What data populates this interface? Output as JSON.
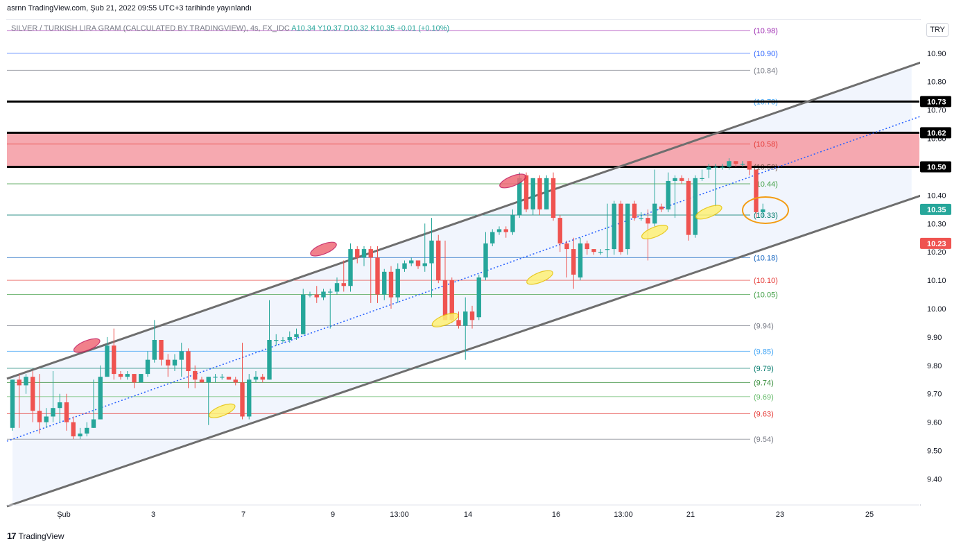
{
  "header": {
    "publisher_text": "asrnn TradingView.com, Şub 21, 2022 09:55 UTC+3 tarihinde yayınlandı"
  },
  "symbol": {
    "name": "SILVER / TURKISH LIRA GRAM (CALCULATED BY TRADINGVIEW), 4s, FX_IDC",
    "ohlc_text": "A10.34  Y10.37  D10.32  K10.35  +0.01 (+0.10%)"
  },
  "currency_button": "TRY",
  "footer": {
    "logo": "17",
    "brand": "TradingView"
  },
  "colors": {
    "up": "#26a69a",
    "down": "#ef5350",
    "channel_line": "#6e6e6e",
    "channel_fill": "#eef2fc",
    "resistance_zone": "#f5a0a7",
    "midline": "#2962ff"
  },
  "chart_data": {
    "type": "candlestick",
    "ylim": [
      9.31,
      11.0
    ],
    "y_ticks": [
      "10.90",
      "10.80",
      "10.70",
      "10.60",
      "10.50",
      "10.40",
      "10.30",
      "10.20",
      "10.10",
      "10.00",
      "9.90",
      "9.80",
      "9.70",
      "9.60",
      "9.50",
      "9.40"
    ],
    "x_ticks": [
      "Şub",
      "3",
      "7",
      "9",
      "13:00",
      "14",
      "16",
      "13:00",
      "21",
      "23",
      "25"
    ],
    "levels": [
      {
        "value": 10.98,
        "label": "(10.98)",
        "color": "#9c27b0"
      },
      {
        "value": 10.9,
        "label": "(10.90)",
        "color": "#2962ff"
      },
      {
        "value": 10.84,
        "label": "(10.84)",
        "color": "#787b86"
      },
      {
        "value": 10.73,
        "label": "(10.73)",
        "color": "#42a5f5"
      },
      {
        "value": 10.58,
        "label": "(10.58)",
        "color": "#e53935"
      },
      {
        "value": 10.5,
        "label": "(10.50)",
        "color": "#795548"
      },
      {
        "value": 10.44,
        "label": "(10.44)",
        "color": "#43a047"
      },
      {
        "value": 10.33,
        "label": "(10.33)",
        "color": "#00796b"
      },
      {
        "value": 10.18,
        "label": "(10.18)",
        "color": "#1565c0"
      },
      {
        "value": 10.1,
        "label": "(10.10)",
        "color": "#e53935"
      },
      {
        "value": 10.05,
        "label": "(10.05)",
        "color": "#43a047"
      },
      {
        "value": 9.94,
        "label": "(9.94)",
        "color": "#787b86"
      },
      {
        "value": 9.85,
        "label": "(9.85)",
        "color": "#42a5f5"
      },
      {
        "value": 9.79,
        "label": "(9.79)",
        "color": "#00796b"
      },
      {
        "value": 9.74,
        "label": "(9.74)",
        "color": "#388e3c"
      },
      {
        "value": 9.69,
        "label": "(9.69)",
        "color": "#66bb6a"
      },
      {
        "value": 9.63,
        "label": "(9.63)",
        "color": "#e53935"
      },
      {
        "value": 9.54,
        "label": "(9.54)",
        "color": "#787b86"
      }
    ],
    "price_badges": [
      {
        "value": 10.73,
        "label": "10.73",
        "bg": "#000000",
        "fg": "#ffffff"
      },
      {
        "value": 10.62,
        "label": "10.62",
        "bg": "#000000",
        "fg": "#ffffff"
      },
      {
        "value": 10.5,
        "label": "10.50",
        "bg": "#000000",
        "fg": "#ffffff"
      },
      {
        "value": 10.35,
        "label": "10.35",
        "bg": "#26a69a",
        "fg": "#ffffff"
      },
      {
        "value": 10.23,
        "label": "10.23",
        "bg": "#ef5350",
        "fg": "#ffffff"
      }
    ],
    "resistance_zone": [
      10.5,
      10.62
    ],
    "black_lines": [
      10.73,
      10.62,
      10.5
    ],
    "candles": [
      [
        9.58,
        9.75,
        9.57,
        9.75
      ],
      [
        9.75,
        9.73,
        9.58,
        9.77
      ],
      [
        9.73,
        9.76,
        9.7,
        9.77
      ],
      [
        9.76,
        9.64,
        9.6,
        9.78
      ],
      [
        9.64,
        9.6,
        9.56,
        9.77
      ],
      [
        9.6,
        9.62,
        9.58,
        9.65
      ],
      [
        9.62,
        9.65,
        9.6,
        9.78
      ],
      [
        9.65,
        9.67,
        9.6,
        9.7
      ],
      [
        9.67,
        9.6,
        9.57,
        9.7
      ],
      [
        9.6,
        9.55,
        9.54,
        9.62
      ],
      [
        9.55,
        9.56,
        9.54,
        9.58
      ],
      [
        9.56,
        9.58,
        9.55,
        9.6
      ],
      [
        9.58,
        9.61,
        9.58,
        9.75
      ],
      [
        9.61,
        9.76,
        9.61,
        9.8
      ],
      [
        9.76,
        9.87,
        9.76,
        9.9
      ],
      [
        9.87,
        9.77,
        9.75,
        9.93
      ],
      [
        9.77,
        9.76,
        9.75,
        9.78
      ],
      [
        9.76,
        9.77,
        9.75,
        9.78
      ],
      [
        9.77,
        9.74,
        9.72,
        9.77
      ],
      [
        9.74,
        9.77,
        9.74,
        9.77
      ],
      [
        9.77,
        9.82,
        9.76,
        9.85
      ],
      [
        9.82,
        9.89,
        9.81,
        9.96
      ],
      [
        9.89,
        9.82,
        9.8,
        9.89
      ],
      [
        9.82,
        9.8,
        9.76,
        9.84
      ],
      [
        9.8,
        9.82,
        9.78,
        9.84
      ],
      [
        9.82,
        9.85,
        9.76,
        9.88
      ],
      [
        9.85,
        9.78,
        9.72,
        9.86
      ],
      [
        9.78,
        9.75,
        9.72,
        9.8
      ],
      [
        9.75,
        9.74,
        9.74,
        9.76
      ],
      [
        9.74,
        9.76,
        9.59,
        9.76
      ],
      [
        9.76,
        9.76,
        9.74,
        9.77
      ],
      [
        9.76,
        9.76,
        9.75,
        9.77
      ],
      [
        9.76,
        9.75,
        9.75,
        9.76
      ],
      [
        9.75,
        9.74,
        9.73,
        9.76
      ],
      [
        9.74,
        9.62,
        9.61,
        9.88
      ],
      [
        9.62,
        9.75,
        9.61,
        9.77
      ],
      [
        9.75,
        9.76,
        9.74,
        9.78
      ],
      [
        9.76,
        9.75,
        9.74,
        9.77
      ],
      [
        9.75,
        9.89,
        9.75,
        10.03
      ],
      [
        9.89,
        9.89,
        9.87,
        9.91
      ],
      [
        9.89,
        9.89,
        9.88,
        9.9
      ],
      [
        9.89,
        9.9,
        9.88,
        9.92
      ],
      [
        9.9,
        9.91,
        9.89,
        9.93
      ],
      [
        9.91,
        10.05,
        9.91,
        10.07
      ],
      [
        10.05,
        10.05,
        10.04,
        10.06
      ],
      [
        10.05,
        10.04,
        10.02,
        10.08
      ],
      [
        10.04,
        10.06,
        10.03,
        10.07
      ],
      [
        10.06,
        10.06,
        9.93,
        10.07
      ],
      [
        10.06,
        10.09,
        10.05,
        10.11
      ],
      [
        10.09,
        10.08,
        10.06,
        10.17
      ],
      [
        10.08,
        10.21,
        10.06,
        10.23
      ],
      [
        10.21,
        10.18,
        10.16,
        10.22
      ],
      [
        10.18,
        10.21,
        10.15,
        10.22
      ],
      [
        10.21,
        10.18,
        10.02,
        10.22
      ],
      [
        10.18,
        10.05,
        10.02,
        10.22
      ],
      [
        10.05,
        10.13,
        10.03,
        10.14
      ],
      [
        10.13,
        10.04,
        10.0,
        10.15
      ],
      [
        10.04,
        10.14,
        10.02,
        10.16
      ],
      [
        10.14,
        10.16,
        10.13,
        10.17
      ],
      [
        10.16,
        10.17,
        10.15,
        10.18
      ],
      [
        10.17,
        10.15,
        10.14,
        10.17
      ],
      [
        10.15,
        10.16,
        10.13,
        10.3
      ],
      [
        10.16,
        10.24,
        10.04,
        10.32
      ],
      [
        10.24,
        10.1,
        10.09,
        10.26
      ],
      [
        10.1,
        9.96,
        9.96,
        10.24
      ],
      [
        10.1,
        9.96,
        9.95,
        10.11
      ],
      [
        9.96,
        9.94,
        9.93,
        9.99
      ],
      [
        9.94,
        9.99,
        9.82,
        10.04
      ],
      [
        9.99,
        9.96,
        9.93,
        10.01
      ],
      [
        9.97,
        10.11,
        9.96,
        10.12
      ],
      [
        10.11,
        10.23,
        10.1,
        10.27
      ],
      [
        10.23,
        10.27,
        10.22,
        10.28
      ],
      [
        10.27,
        10.28,
        10.26,
        10.29
      ],
      [
        10.28,
        10.27,
        10.25,
        10.29
      ],
      [
        10.27,
        10.33,
        10.26,
        10.35
      ],
      [
        10.33,
        10.46,
        10.32,
        10.48
      ],
      [
        10.47,
        10.35,
        10.34,
        10.48
      ],
      [
        10.35,
        10.46,
        10.33,
        10.46
      ],
      [
        10.46,
        10.35,
        10.33,
        10.47
      ],
      [
        10.35,
        10.46,
        10.35,
        10.47
      ],
      [
        10.46,
        10.32,
        10.31,
        10.48
      ],
      [
        10.32,
        10.23,
        10.2,
        10.33
      ],
      [
        10.23,
        10.21,
        10.11,
        10.24
      ],
      [
        10.21,
        10.12,
        10.07,
        10.25
      ],
      [
        10.11,
        10.23,
        10.1,
        10.25
      ],
      [
        10.23,
        10.21,
        10.19,
        10.24
      ],
      [
        10.21,
        10.2,
        10.19,
        10.21
      ],
      [
        10.2,
        10.2,
        10.19,
        10.21
      ],
      [
        10.21,
        10.21,
        10.18,
        10.37
      ],
      [
        10.21,
        10.37,
        10.19,
        10.38
      ],
      [
        10.37,
        10.2,
        10.19,
        10.38
      ],
      [
        10.21,
        10.37,
        10.19,
        10.37
      ],
      [
        10.37,
        10.32,
        10.31,
        10.38
      ],
      [
        10.32,
        10.32,
        10.31,
        10.34
      ],
      [
        10.32,
        10.3,
        10.17,
        10.35
      ],
      [
        10.3,
        10.37,
        10.29,
        10.49
      ],
      [
        10.36,
        10.35,
        10.34,
        10.37
      ],
      [
        10.35,
        10.45,
        10.34,
        10.48
      ],
      [
        10.45,
        10.46,
        10.32,
        10.47
      ],
      [
        10.46,
        10.45,
        10.44,
        10.47
      ],
      [
        10.45,
        10.26,
        10.24,
        10.46
      ],
      [
        10.26,
        10.46,
        10.25,
        10.47
      ],
      [
        10.46,
        10.46,
        10.45,
        10.49
      ],
      [
        10.49,
        10.5,
        10.46,
        10.51
      ],
      [
        10.5,
        10.5,
        10.36,
        10.51
      ],
      [
        10.5,
        10.5,
        10.49,
        10.51
      ],
      [
        10.5,
        10.52,
        10.49,
        10.53
      ],
      [
        10.52,
        10.51,
        10.5,
        10.52
      ],
      [
        10.51,
        10.51,
        10.5,
        10.52
      ],
      [
        10.52,
        10.49,
        10.47,
        10.52
      ],
      [
        10.49,
        10.34,
        10.32,
        10.49
      ],
      [
        10.34,
        10.35,
        10.32,
        10.37
      ]
    ],
    "channel": {
      "upper": [
        [
          0,
          9.76
        ],
        [
          150.4,
          11.0
        ]
      ],
      "lower": [
        [
          0,
          9.31
        ],
        [
          161.7,
          10.62
        ]
      ],
      "mid": [
        [
          0,
          9.54
        ],
        [
          157.0,
          10.87
        ]
      ]
    }
  }
}
